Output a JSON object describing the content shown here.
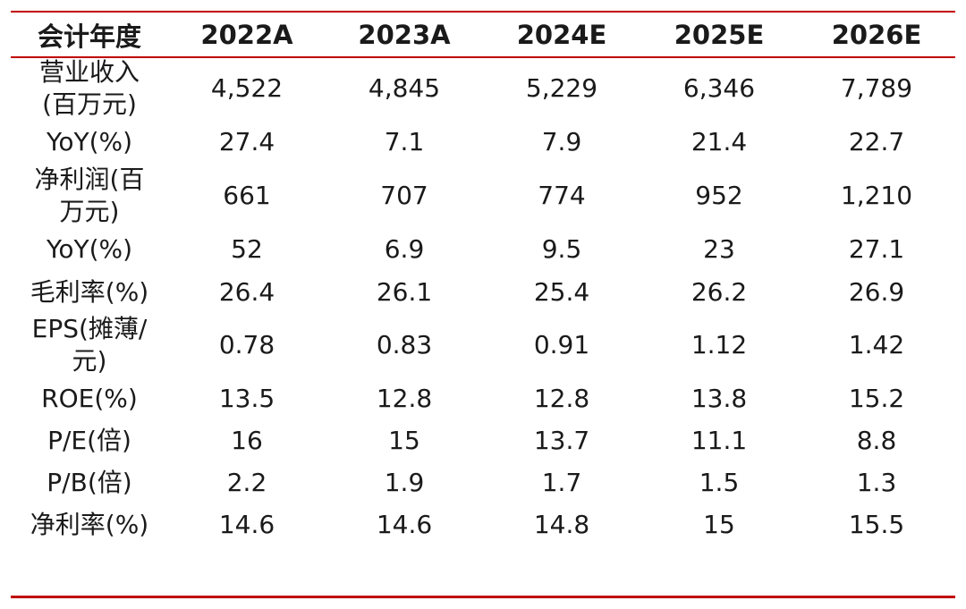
{
  "table": {
    "header": [
      "会计年度",
      "2022A",
      "2023A",
      "2024E",
      "2025E",
      "2026E"
    ],
    "rows": [
      {
        "label_lines": [
          "营业收入",
          "(百万元)"
        ],
        "values": [
          "4,522",
          "4,845",
          "5,229",
          "6,346",
          "7,789"
        ]
      },
      {
        "label_lines": [
          "YoY(%)"
        ],
        "values": [
          "27.4",
          "7.1",
          "7.9",
          "21.4",
          "22.7"
        ]
      },
      {
        "label_lines": [
          "净利润(百",
          "万元)"
        ],
        "values": [
          "661",
          "707",
          "774",
          "952",
          "1,210"
        ]
      },
      {
        "label_lines": [
          "YoY(%)"
        ],
        "values": [
          "52",
          "6.9",
          "9.5",
          "23",
          "27.1"
        ]
      },
      {
        "label_lines": [
          "毛利率(%)"
        ],
        "values": [
          "26.4",
          "26.1",
          "25.4",
          "26.2",
          "26.9"
        ]
      },
      {
        "label_lines": [
          "EPS(摊薄/",
          "元)"
        ],
        "values": [
          "0.78",
          "0.83",
          "0.91",
          "1.12",
          "1.42"
        ]
      },
      {
        "label_lines": [
          "ROE(%)"
        ],
        "values": [
          "13.5",
          "12.8",
          "12.8",
          "13.8",
          "15.2"
        ]
      },
      {
        "label_lines": [
          "P/E(倍)"
        ],
        "values": [
          "16",
          "15",
          "13.7",
          "11.1",
          "8.8"
        ]
      },
      {
        "label_lines": [
          "P/B(倍)"
        ],
        "values": [
          "2.2",
          "1.9",
          "1.7",
          "1.5",
          "1.3"
        ]
      },
      {
        "label_lines": [
          "净利率(%)"
        ],
        "values": [
          "14.6",
          "14.6",
          "14.8",
          "15",
          "15.5"
        ]
      }
    ]
  },
  "colors": {
    "rule": "#c00000",
    "text": "#1a1a1a"
  }
}
